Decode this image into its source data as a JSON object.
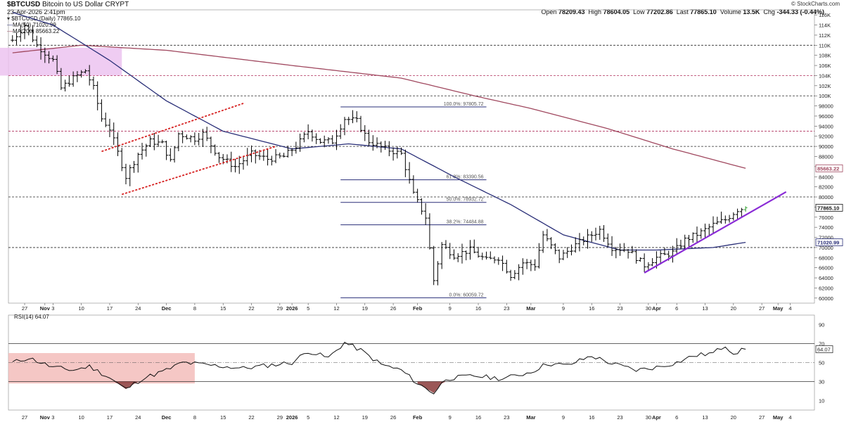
{
  "header": {
    "symbol": "$BTCUSD",
    "name": "Bitcoin to US Dollar",
    "exchange": "CRYPT",
    "timestamp": "23-Apr-2026 2:41pm",
    "open_label": "Open",
    "open": "78209.43",
    "high_label": "High",
    "high": "78604.05",
    "low_label": "Low",
    "low": "77202.86",
    "last_label": "Last",
    "last": "77865.10",
    "volume_label": "Volume",
    "volume": "13.5K",
    "chg_label": "Chg",
    "chg": "-344.33 (-0.44%)",
    "brand": "© StockCharts.com"
  },
  "legend": {
    "price": "$BTCUSD (Daily) 77865.10",
    "ma50": "MA(50) 71020.99",
    "ma200": "MA(200) 85663.22",
    "rsi": "RSI(14) 64.07"
  },
  "colors": {
    "price": "#000000",
    "ma50": "#2a2f78",
    "ma200": "#a0485f",
    "trend_red": "#d62020",
    "trend_purple": "#8a2bd6",
    "pink_zone": "#ecc3f0",
    "rsi_zone": "#f3b9b6",
    "oversold_fill": "#8a3a3a",
    "grid": "#2b2b2b",
    "fib": "#2a2f78",
    "hline_pink": "#b0325f"
  },
  "chart_data": [
    {
      "type": "ohlc",
      "title": "$BTCUSD (Daily)",
      "y_ticks": [
        60000,
        62000,
        64000,
        66000,
        68000,
        70000,
        72000,
        74000,
        76000,
        78000,
        80000,
        82000,
        84000,
        86000,
        88000,
        90000,
        92000,
        94000,
        96000,
        98000,
        100000,
        102000,
        104000,
        106000,
        108000,
        110000,
        112000,
        114000,
        116000
      ],
      "y_tick_labels": [
        "60000",
        "62000",
        "64000",
        "66000",
        "68000",
        "70000",
        "72000",
        "74000",
        "76000",
        "78000",
        "80000",
        "82000",
        "84000",
        "86000",
        "88000",
        "90000",
        "92000",
        "94000",
        "96000",
        "98000",
        "100K",
        "102K",
        "104K",
        "106K",
        "108K",
        "110K",
        "112K",
        "114K",
        "116K"
      ],
      "ylim": [
        59000,
        117000
      ],
      "x_labels": [
        {
          "label": "27",
          "date": "2025-10-27"
        },
        {
          "label": "Nov",
          "date": "2025-11-01"
        },
        {
          "label": "3",
          "date": "2025-11-03"
        },
        {
          "label": "10",
          "date": "2025-11-10"
        },
        {
          "label": "17",
          "date": "2025-11-17"
        },
        {
          "label": "24",
          "date": "2025-11-24"
        },
        {
          "label": "Dec",
          "date": "2025-12-01"
        },
        {
          "label": "8",
          "date": "2025-12-08"
        },
        {
          "label": "15",
          "date": "2025-12-15"
        },
        {
          "label": "22",
          "date": "2025-12-22"
        },
        {
          "label": "29",
          "date": "2025-12-29"
        },
        {
          "label": "2026",
          "date": "2026-01-01"
        },
        {
          "label": "5",
          "date": "2026-01-05"
        },
        {
          "label": "12",
          "date": "2026-01-12"
        },
        {
          "label": "19",
          "date": "2026-01-19"
        },
        {
          "label": "26",
          "date": "2026-01-26"
        },
        {
          "label": "Feb",
          "date": "2026-02-01"
        },
        {
          "label": "9",
          "date": "2026-02-09"
        },
        {
          "label": "16",
          "date": "2026-02-16"
        },
        {
          "label": "23",
          "date": "2026-02-23"
        },
        {
          "label": "Mar",
          "date": "2026-03-01"
        },
        {
          "label": "9",
          "date": "2026-03-09"
        },
        {
          "label": "16",
          "date": "2026-03-16"
        },
        {
          "label": "23",
          "date": "2026-03-23"
        },
        {
          "label": "30",
          "date": "2026-03-30"
        },
        {
          "label": "Apr",
          "date": "2026-04-01"
        },
        {
          "label": "6",
          "date": "2026-04-06"
        },
        {
          "label": "13",
          "date": "2026-04-13"
        },
        {
          "label": "20",
          "date": "2026-04-20"
        },
        {
          "label": "27",
          "date": "2026-04-27"
        },
        {
          "label": "May",
          "date": "2026-05-01"
        },
        {
          "label": "4",
          "date": "2026-05-04"
        }
      ],
      "price_anchors": [
        {
          "date": "2025-10-24",
          "price": 111000
        },
        {
          "date": "2025-10-27",
          "price": 114000
        },
        {
          "date": "2025-10-30",
          "price": 110000
        },
        {
          "date": "2025-11-03",
          "price": 107000
        },
        {
          "date": "2025-11-05",
          "price": 101500
        },
        {
          "date": "2025-11-08",
          "price": 103500
        },
        {
          "date": "2025-11-11",
          "price": 105000
        },
        {
          "date": "2025-11-13",
          "price": 101500
        },
        {
          "date": "2025-11-15",
          "price": 95500
        },
        {
          "date": "2025-11-17",
          "price": 93500
        },
        {
          "date": "2025-11-21",
          "price": 84000
        },
        {
          "date": "2025-11-24",
          "price": 88500
        },
        {
          "date": "2025-11-27",
          "price": 91000
        },
        {
          "date": "2025-11-30",
          "price": 90500
        },
        {
          "date": "2025-12-02",
          "price": 87000
        },
        {
          "date": "2025-12-04",
          "price": 92500
        },
        {
          "date": "2025-12-08",
          "price": 91500
        },
        {
          "date": "2025-12-10",
          "price": 92500
        },
        {
          "date": "2025-12-14",
          "price": 88000
        },
        {
          "date": "2025-12-18",
          "price": 86000
        },
        {
          "date": "2025-12-22",
          "price": 88500
        },
        {
          "date": "2025-12-26",
          "price": 87500
        },
        {
          "date": "2025-12-30",
          "price": 88000
        },
        {
          "date": "2026-01-02",
          "price": 90000
        },
        {
          "date": "2026-01-05",
          "price": 93000
        },
        {
          "date": "2026-01-08",
          "price": 91000
        },
        {
          "date": "2026-01-11",
          "price": 91000
        },
        {
          "date": "2026-01-14",
          "price": 95500
        },
        {
          "date": "2026-01-17",
          "price": 95000
        },
        {
          "date": "2026-01-20",
          "price": 91000
        },
        {
          "date": "2026-01-24",
          "price": 89500
        },
        {
          "date": "2026-01-28",
          "price": 88500
        },
        {
          "date": "2026-01-31",
          "price": 80500
        },
        {
          "date": "2026-02-03",
          "price": 76000
        },
        {
          "date": "2026-02-05",
          "price": 63500
        },
        {
          "date": "2026-02-07",
          "price": 70500
        },
        {
          "date": "2026-02-10",
          "price": 68500
        },
        {
          "date": "2026-02-14",
          "price": 69500
        },
        {
          "date": "2026-02-18",
          "price": 67500
        },
        {
          "date": "2026-02-21",
          "price": 68000
        },
        {
          "date": "2026-02-24",
          "price": 64500
        },
        {
          "date": "2026-02-27",
          "price": 67000
        },
        {
          "date": "2026-03-02",
          "price": 66500
        },
        {
          "date": "2026-03-04",
          "price": 72500
        },
        {
          "date": "2026-03-08",
          "price": 68000
        },
        {
          "date": "2026-03-12",
          "price": 70500
        },
        {
          "date": "2026-03-15",
          "price": 72000
        },
        {
          "date": "2026-03-18",
          "price": 73500
        },
        {
          "date": "2026-03-21",
          "price": 70000
        },
        {
          "date": "2026-03-25",
          "price": 69500
        },
        {
          "date": "2026-03-29",
          "price": 66500
        },
        {
          "date": "2026-04-01",
          "price": 68000
        },
        {
          "date": "2026-04-05",
          "price": 69000
        },
        {
          "date": "2026-04-08",
          "price": 71500
        },
        {
          "date": "2026-04-12",
          "price": 73000
        },
        {
          "date": "2026-04-15",
          "price": 74500
        },
        {
          "date": "2026-04-18",
          "price": 75500
        },
        {
          "date": "2026-04-21",
          "price": 77500
        },
        {
          "date": "2026-04-23",
          "price": 77865.1
        }
      ],
      "ma50_anchors": [
        {
          "date": "2025-10-24",
          "value": 116500
        },
        {
          "date": "2025-11-03",
          "value": 114000
        },
        {
          "date": "2025-11-17",
          "value": 107000
        },
        {
          "date": "2025-12-01",
          "value": 99000
        },
        {
          "date": "2025-12-15",
          "value": 93000
        },
        {
          "date": "2026-01-01",
          "value": 89500
        },
        {
          "date": "2026-01-15",
          "value": 90500
        },
        {
          "date": "2026-01-28",
          "value": 89500
        },
        {
          "date": "2026-02-10",
          "value": 84000
        },
        {
          "date": "2026-02-24",
          "value": 78500
        },
        {
          "date": "2026-03-09",
          "value": 72500
        },
        {
          "date": "2026-03-23",
          "value": 69500
        },
        {
          "date": "2026-04-01",
          "value": 69500
        },
        {
          "date": "2026-04-15",
          "value": 70000
        },
        {
          "date": "2026-04-23",
          "value": 71020.99
        }
      ],
      "ma200_anchors": [
        {
          "date": "2025-10-24",
          "value": 108500
        },
        {
          "date": "2025-11-10",
          "value": 110000
        },
        {
          "date": "2025-12-01",
          "value": 109000
        },
        {
          "date": "2026-01-01",
          "value": 106000
        },
        {
          "date": "2026-01-28",
          "value": 103500
        },
        {
          "date": "2026-02-15",
          "value": 100000
        },
        {
          "date": "2026-03-01",
          "value": 97500
        },
        {
          "date": "2026-03-20",
          "value": 93500
        },
        {
          "date": "2026-04-05",
          "value": 89500
        },
        {
          "date": "2026-04-23",
          "value": 85663.22
        }
      ],
      "last_label": "77865.10",
      "ma50_label": "71020.99",
      "ma200_label": "85663.22",
      "fibonacci": [
        {
          "label": "100.0%: 97805.72",
          "value": 97805.72
        },
        {
          "label": "61.8%: 83390.56",
          "value": 83390.56
        },
        {
          "label": "50.0%: 78932.72",
          "value": 78932.72
        },
        {
          "label": "38.2%: 74484.88",
          "value": 74484.88
        },
        {
          "label": "0.0%: 60059.72",
          "value": 60059.72
        }
      ],
      "h_lines_dashed_dark": [
        110000,
        100000,
        90000,
        80000,
        70000
      ],
      "h_lines_dashed_pink": [
        104000,
        93000
      ],
      "pink_zone": {
        "from_date": "2025-10-23",
        "to_date": "2025-11-20",
        "low": 104000,
        "high": 109500
      },
      "red_channel": [
        {
          "from": {
            "date": "2025-11-15",
            "value": 89000
          },
          "to": {
            "date": "2025-12-20",
            "value": 98500
          }
        },
        {
          "from": {
            "date": "2025-11-20",
            "value": 80500
          },
          "to": {
            "date": "2025-12-28",
            "value": 90000
          }
        }
      ],
      "purple_trendline": {
        "from": {
          "date": "2026-03-29",
          "value": 65000
        },
        "to": {
          "date": "2026-05-03",
          "value": 81000
        }
      }
    },
    {
      "type": "line",
      "title": "RSI(14)",
      "y_ticks": [
        10,
        30,
        50,
        70,
        90
      ],
      "ylim": [
        0,
        100
      ],
      "last_label": "64.07",
      "rsi_anchors": [
        {
          "date": "2025-10-24",
          "value": 50
        },
        {
          "date": "2025-10-28",
          "value": 55
        },
        {
          "date": "2025-11-03",
          "value": 45
        },
        {
          "date": "2025-11-08",
          "value": 42
        },
        {
          "date": "2025-11-12",
          "value": 46
        },
        {
          "date": "2025-11-17",
          "value": 34
        },
        {
          "date": "2025-11-21",
          "value": 22
        },
        {
          "date": "2025-11-25",
          "value": 33
        },
        {
          "date": "2025-12-01",
          "value": 42
        },
        {
          "date": "2025-12-05",
          "value": 50
        },
        {
          "date": "2025-12-10",
          "value": 48
        },
        {
          "date": "2025-12-15",
          "value": 46
        },
        {
          "date": "2025-12-20",
          "value": 44
        },
        {
          "date": "2026-01-01",
          "value": 50
        },
        {
          "date": "2026-01-05",
          "value": 62
        },
        {
          "date": "2026-01-10",
          "value": 55
        },
        {
          "date": "2026-01-14",
          "value": 71
        },
        {
          "date": "2026-01-18",
          "value": 63
        },
        {
          "date": "2026-01-23",
          "value": 48
        },
        {
          "date": "2026-01-28",
          "value": 42
        },
        {
          "date": "2026-02-01",
          "value": 28
        },
        {
          "date": "2026-02-05",
          "value": 18
        },
        {
          "date": "2026-02-08",
          "value": 33
        },
        {
          "date": "2026-02-15",
          "value": 36
        },
        {
          "date": "2026-02-22",
          "value": 33
        },
        {
          "date": "2026-03-01",
          "value": 40
        },
        {
          "date": "2026-03-05",
          "value": 49
        },
        {
          "date": "2026-03-10",
          "value": 47
        },
        {
          "date": "2026-03-16",
          "value": 57
        },
        {
          "date": "2026-03-21",
          "value": 49
        },
        {
          "date": "2026-03-27",
          "value": 42
        },
        {
          "date": "2026-04-01",
          "value": 45
        },
        {
          "date": "2026-04-06",
          "value": 50
        },
        {
          "date": "2026-04-10",
          "value": 57
        },
        {
          "date": "2026-04-15",
          "value": 60
        },
        {
          "date": "2026-04-18",
          "value": 68
        },
        {
          "date": "2026-04-20",
          "value": 60
        },
        {
          "date": "2026-04-23",
          "value": 64.07
        }
      ],
      "rsi_zone": {
        "from_date": "2025-10-23",
        "to_date": "2025-12-08",
        "low": 28,
        "high": 60
      },
      "oversold_fills": [
        {
          "from_date": "2025-11-18",
          "to_date": "2025-11-26"
        },
        {
          "from_date": "2026-02-01",
          "to_date": "2026-02-08"
        }
      ]
    }
  ]
}
